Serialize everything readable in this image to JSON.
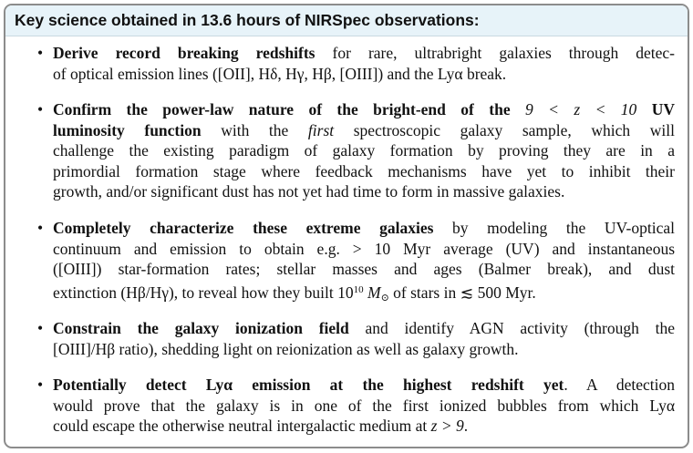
{
  "header": {
    "title": "Key science obtained in 13.6 hours of NIRSpec observations:"
  },
  "items": [
    {
      "lines": [
        [
          "Derive record breaking redshifts",
          " for rare, ultrabright galaxies through detec-"
        ],
        [
          "of optical emission lines ([OII], Hδ, Hγ, Hβ, [OIII]) and the Lyα break."
        ]
      ]
    },
    {
      "lines": [
        [
          "Confirm the power-law nature of the bright-end of the ",
          "9 < z < 10",
          " UV"
        ],
        [
          "luminosity function",
          " with the ",
          "first",
          " spectroscopic galaxy sample, which will"
        ],
        [
          "challenge the existing paradigm of galaxy formation by proving they are in a"
        ],
        [
          "primordial formation stage where feedback mechanisms have yet to inhibit their"
        ],
        [
          "growth, and/or significant dust has not yet had time to form in massive galaxies."
        ]
      ]
    },
    {
      "lines": [
        [
          "Completely characterize these extreme galaxies",
          " by modeling the UV-optical"
        ],
        [
          "continuum and emission to obtain e.g. > 10 Myr average (UV) and instantaneous"
        ],
        [
          "([OIII]) star-formation rates; stellar masses and ages (Balmer break), and dust"
        ],
        [
          "extinction (Hβ/Hγ), to reveal how they built ",
          "10",
          "10",
          " M",
          "⊙",
          " of stars in ≲ 500 Myr."
        ]
      ]
    },
    {
      "lines": [
        [
          "Constrain the galaxy ionization field",
          " and identify AGN activity (through the"
        ],
        [
          "[OIII]/Hβ ratio), shedding light on reionization as well as galaxy growth."
        ]
      ]
    },
    {
      "lines": [
        [
          "Potentially detect Lyα emission at the highest redshift yet",
          ". A detection"
        ],
        [
          "would prove that the galaxy is in one of the first ionized bubbles from which Lyα"
        ],
        [
          "could escape the otherwise neutral intergalactic medium at ",
          "z > 9",
          "."
        ]
      ]
    }
  ]
}
